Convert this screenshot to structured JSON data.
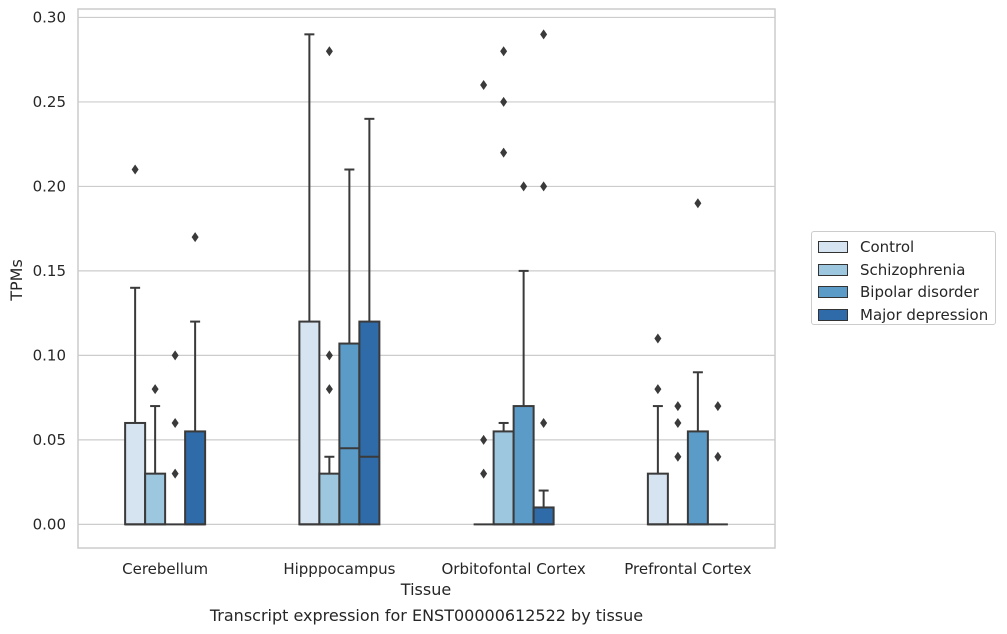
{
  "chart_data": {
    "type": "box",
    "title": "",
    "xlabel": "Tissue",
    "ylabel": "TPMs",
    "caption": "Transcript expression for ENST00000612522 by tissue",
    "ylim": [
      -0.014,
      0.305
    ],
    "yticks": [
      "0.00",
      "0.05",
      "0.10",
      "0.15",
      "0.20",
      "0.25",
      "0.30"
    ],
    "grid": true,
    "legend_position": "right",
    "categories": [
      "Cerebellum",
      "Hipppocampus",
      "Orbitofontal Cortex",
      "Prefrontal Cortex"
    ],
    "series": [
      {
        "name": "Control",
        "color": "#d6e4f1",
        "boxes": [
          {
            "q1": 0,
            "median": 0,
            "q3": 0.06,
            "whisker_low": 0,
            "whisker_high": 0.14,
            "outliers": [
              0.21
            ]
          },
          {
            "q1": 0,
            "median": 0,
            "q3": 0.12,
            "whisker_low": 0,
            "whisker_high": 0.29,
            "outliers": []
          },
          {
            "q1": 0,
            "median": 0,
            "q3": 0,
            "whisker_low": 0,
            "whisker_high": 0,
            "outliers": [
              0.03,
              0.05,
              0.26
            ]
          },
          {
            "q1": 0,
            "median": 0,
            "q3": 0.03,
            "whisker_low": 0,
            "whisker_high": 0.07,
            "outliers": [
              0.08,
              0.11
            ]
          }
        ]
      },
      {
        "name": "Schizophrenia",
        "color": "#9dc6df",
        "boxes": [
          {
            "q1": 0,
            "median": 0,
            "q3": 0.03,
            "whisker_low": 0,
            "whisker_high": 0.07,
            "outliers": [
              0.08
            ]
          },
          {
            "q1": 0,
            "median": 0,
            "q3": 0.03,
            "whisker_low": 0,
            "whisker_high": 0.04,
            "outliers": [
              0.08,
              0.1,
              0.28
            ]
          },
          {
            "q1": 0,
            "median": 0,
            "q3": 0.055,
            "whisker_low": 0,
            "whisker_high": 0.06,
            "outliers": [
              0.22,
              0.25,
              0.28
            ]
          },
          {
            "q1": 0,
            "median": 0,
            "q3": 0,
            "whisker_low": 0,
            "whisker_high": 0,
            "outliers": [
              0.04,
              0.06,
              0.07
            ]
          }
        ]
      },
      {
        "name": "Bipolar disorder",
        "color": "#5b9bc8",
        "boxes": [
          {
            "q1": 0,
            "median": 0,
            "q3": 0,
            "whisker_low": 0,
            "whisker_high": 0,
            "outliers": [
              0.03,
              0.06,
              0.1
            ]
          },
          {
            "q1": 0,
            "median": 0.045,
            "q3": 0.107,
            "whisker_low": 0,
            "whisker_high": 0.21,
            "outliers": []
          },
          {
            "q1": 0,
            "median": 0,
            "q3": 0.07,
            "whisker_low": 0,
            "whisker_high": 0.15,
            "outliers": [
              0.2
            ]
          },
          {
            "q1": 0,
            "median": 0,
            "q3": 0.055,
            "whisker_low": 0,
            "whisker_high": 0.09,
            "outliers": [
              0.19
            ]
          }
        ]
      },
      {
        "name": "Major depression",
        "color": "#2f6ba8",
        "boxes": [
          {
            "q1": 0,
            "median": 0,
            "q3": 0.055,
            "whisker_low": 0,
            "whisker_high": 0.12,
            "outliers": [
              0.17
            ]
          },
          {
            "q1": 0,
            "median": 0.04,
            "q3": 0.12,
            "whisker_low": 0,
            "whisker_high": 0.24,
            "outliers": []
          },
          {
            "q1": 0,
            "median": 0,
            "q3": 0.01,
            "whisker_low": 0,
            "whisker_high": 0.02,
            "outliers": [
              0.06,
              0.2,
              0.29
            ]
          },
          {
            "q1": 0,
            "median": 0,
            "q3": 0,
            "whisker_low": 0,
            "whisker_high": 0,
            "outliers": [
              0.04,
              0.07
            ]
          }
        ]
      }
    ]
  }
}
